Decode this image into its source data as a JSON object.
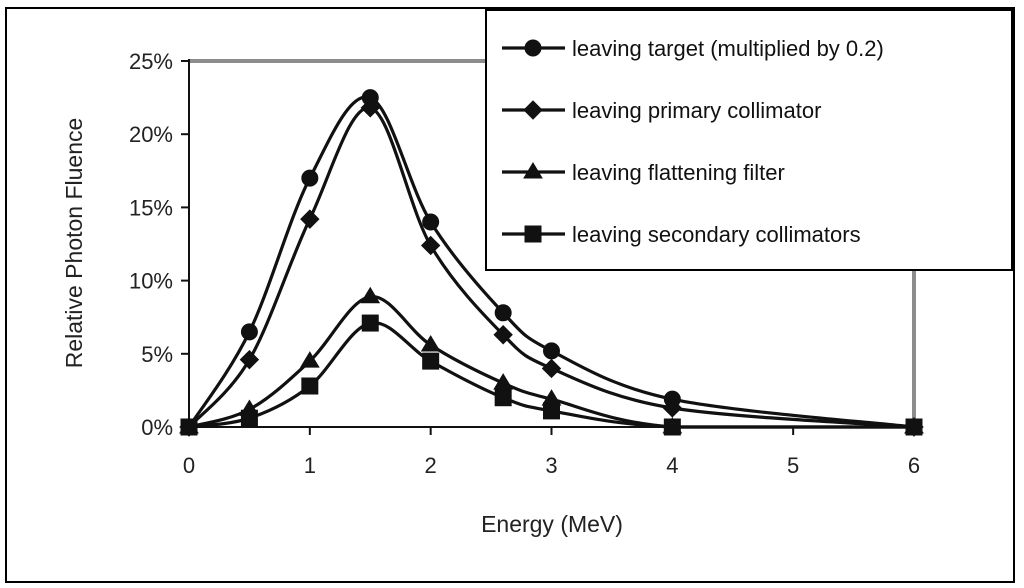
{
  "chart_data": {
    "type": "line",
    "title": "",
    "xlabel": "Energy (MeV)",
    "ylabel": "Relative Photon Fluence",
    "xlim": [
      0,
      6
    ],
    "ylim": [
      0,
      25
    ],
    "x_ticks": [
      0,
      1,
      2,
      3,
      4,
      5,
      6
    ],
    "x_tick_labels": [
      "0",
      "1",
      "2",
      "3",
      "4",
      "5",
      "6"
    ],
    "y_ticks": [
      0,
      5,
      10,
      15,
      20,
      25
    ],
    "y_tick_labels": [
      "0%",
      "5%",
      "10%",
      "15%",
      "20%",
      "25%"
    ],
    "grid": false,
    "legend_position": "top-right",
    "colors": {
      "line": "#111111",
      "plot_border": "#8c8c8c",
      "frame": "#000000"
    },
    "series": [
      {
        "name": "leaving target (multiplied by 0.2)",
        "marker": "circle",
        "x": [
          0,
          0.5,
          1,
          1.5,
          2,
          2.6,
          3,
          4,
          6
        ],
        "y": [
          0,
          6.5,
          17,
          22.5,
          14,
          7.8,
          5.2,
          1.9,
          0
        ]
      },
      {
        "name": "leaving primary collimator",
        "marker": "diamond",
        "x": [
          0,
          0.5,
          1,
          1.5,
          2,
          2.6,
          3,
          4,
          6
        ],
        "y": [
          0,
          4.6,
          14.2,
          21.8,
          12.4,
          6.3,
          4,
          1.3,
          0
        ]
      },
      {
        "name": "leaving flattening filter",
        "marker": "triangle",
        "x": [
          0,
          0.5,
          1,
          1.5,
          2,
          2.6,
          3,
          4,
          6
        ],
        "y": [
          0,
          1.2,
          4.5,
          8.9,
          5.6,
          3,
          1.9,
          0,
          0
        ]
      },
      {
        "name": "leaving secondary collimators",
        "marker": "square",
        "x": [
          0,
          0.5,
          1,
          1.5,
          2,
          2.6,
          3,
          4,
          6
        ],
        "y": [
          0,
          0.6,
          2.8,
          7.1,
          4.5,
          2,
          1.1,
          0,
          0
        ]
      }
    ]
  }
}
